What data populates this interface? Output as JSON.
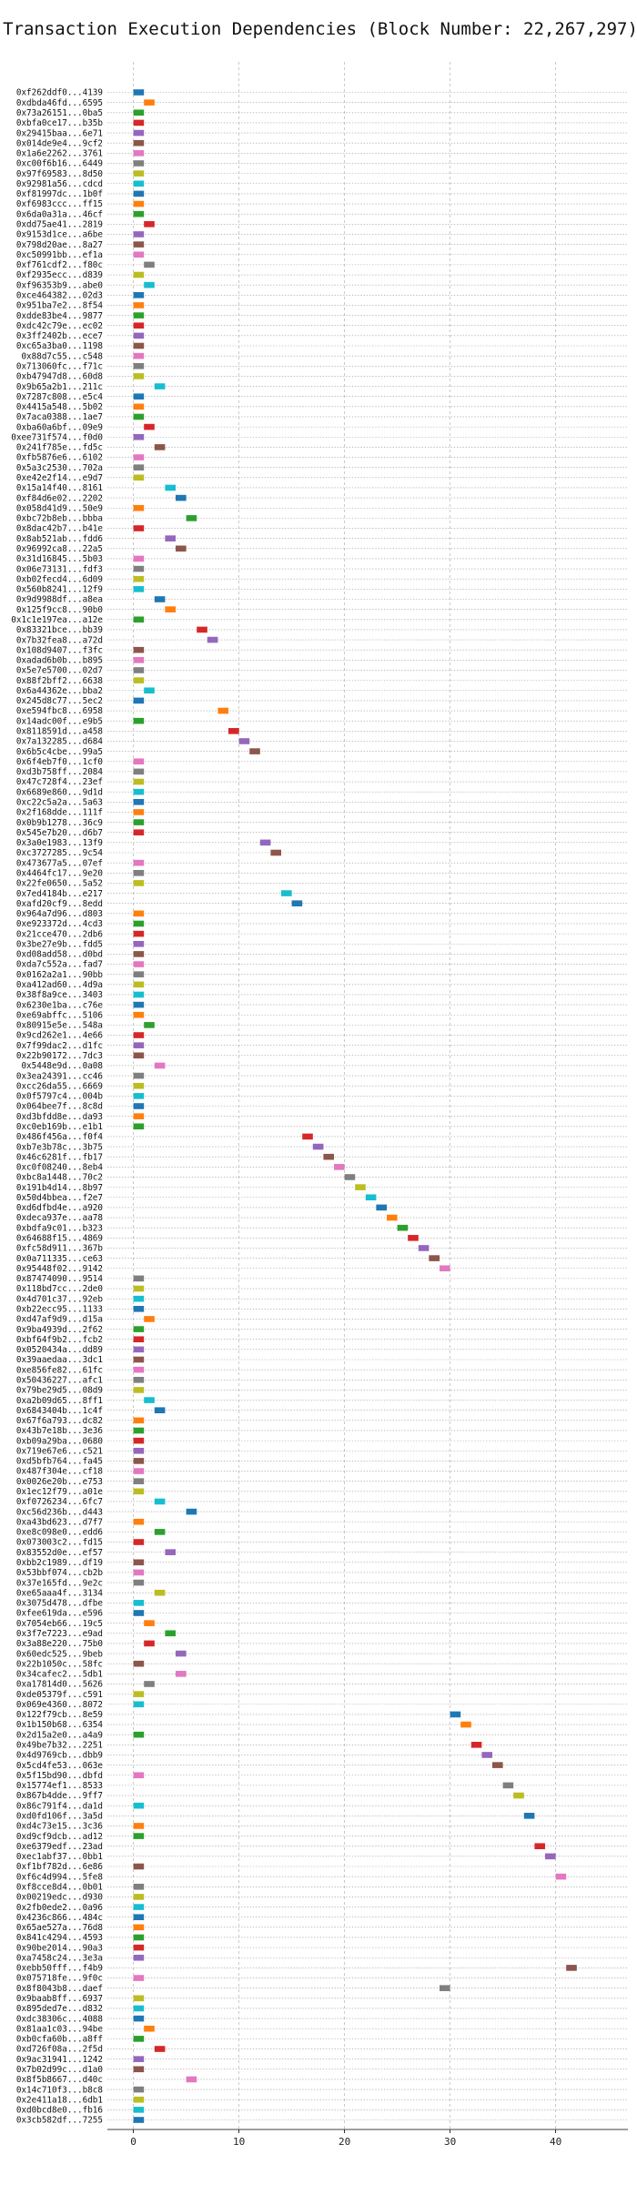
{
  "chart_data": {
    "type": "gantt",
    "title": "Transaction Execution Dependencies (Block Number: 22,267,297)",
    "xlabel": "",
    "ylabel": "",
    "xlim": [
      -2,
      45
    ],
    "xticks": [
      "0",
      "10",
      "20",
      "30",
      "40"
    ],
    "xtick_values": [
      0,
      10,
      20,
      30,
      40
    ],
    "grid": true,
    "palette": [
      "#1f77b4",
      "#ff7f0e",
      "#2ca02c",
      "#d62728",
      "#9467bd",
      "#8c564b",
      "#e377c2",
      "#7f7f7f",
      "#bcbd22",
      "#17becf"
    ],
    "transactions": [
      {
        "label": "0xf262ddf0...4139",
        "start": 0,
        "color": 0
      },
      {
        "label": "0xdbda46fd...6595",
        "start": 1,
        "color": 1
      },
      {
        "label": "0x73a26151...0ba5",
        "start": 0,
        "color": 2
      },
      {
        "label": "0xbfa0ce17...b35b",
        "start": 0,
        "color": 3
      },
      {
        "label": "0x29415baa...6e71",
        "start": 0,
        "color": 4
      },
      {
        "label": "0x014de9e4...9cf2",
        "start": 0,
        "color": 5
      },
      {
        "label": "0x1a6e2262...3761",
        "start": 0,
        "color": 6
      },
      {
        "label": "0xc00f6b16...6449",
        "start": 0,
        "color": 7
      },
      {
        "label": "0x97f69583...8d50",
        "start": 0,
        "color": 8
      },
      {
        "label": "0x92981a56...cdcd",
        "start": 0,
        "color": 9
      },
      {
        "label": "0xf81997dc...1b0f",
        "start": 0,
        "color": 0
      },
      {
        "label": "0xf6983ccc...ff15",
        "start": 0,
        "color": 1
      },
      {
        "label": "0x6da0a31a...46cf",
        "start": 0,
        "color": 2
      },
      {
        "label": "0xdd75ae41...2819",
        "start": 1,
        "color": 3
      },
      {
        "label": "0x9153d1ce...a6be",
        "start": 0,
        "color": 4
      },
      {
        "label": "0x798d20ae...8a27",
        "start": 0,
        "color": 5
      },
      {
        "label": "0xc50991bb...ef1a",
        "start": 0,
        "color": 6
      },
      {
        "label": "0xf761cdf2...f80c",
        "start": 1,
        "color": 7
      },
      {
        "label": "0xf2935ecc...d839",
        "start": 0,
        "color": 8
      },
      {
        "label": "0xf96353b9...abe0",
        "start": 1,
        "color": 9
      },
      {
        "label": "0xce464382...02d3",
        "start": 0,
        "color": 0
      },
      {
        "label": "0x951ba7e2...8f54",
        "start": 0,
        "color": 1
      },
      {
        "label": "0xdde83be4...9877",
        "start": 0,
        "color": 2
      },
      {
        "label": "0xdc42c79e...ec02",
        "start": 0,
        "color": 3
      },
      {
        "label": "0x3ff2402b...ece7",
        "start": 0,
        "color": 4
      },
      {
        "label": "0xc65a3ba0...1198",
        "start": 0,
        "color": 5
      },
      {
        "label": "0x88d7c55...c548",
        "start": 0,
        "color": 6
      },
      {
        "label": "0x713060fc...f71c",
        "start": 0,
        "color": 7
      },
      {
        "label": "0xb47947d8...60d8",
        "start": 0,
        "color": 8
      },
      {
        "label": "0x9b65a2b1...211c",
        "start": 2,
        "color": 9
      },
      {
        "label": "0x7287c808...e5c4",
        "start": 0,
        "color": 0
      },
      {
        "label": "0x4415a548...5b02",
        "start": 0,
        "color": 1
      },
      {
        "label": "0x7aca0388...1ae7",
        "start": 0,
        "color": 2
      },
      {
        "label": "0xba60a6bf...09e9",
        "start": 1,
        "color": 3
      },
      {
        "label": "0xee731f574...f0d0",
        "start": 0,
        "color": 4
      },
      {
        "label": "0x241f785e...fd5c",
        "start": 2,
        "color": 5
      },
      {
        "label": "0xfb5876e6...6102",
        "start": 0,
        "color": 6
      },
      {
        "label": "0x5a3c2530...702a",
        "start": 0,
        "color": 7
      },
      {
        "label": "0xe42e2f14...e9d7",
        "start": 0,
        "color": 8
      },
      {
        "label": "0x15a14f40...8161",
        "start": 3,
        "color": 9
      },
      {
        "label": "0xf84d6e02...2202",
        "start": 4,
        "color": 0
      },
      {
        "label": "0x058d41d9...50e9",
        "start": 0,
        "color": 1
      },
      {
        "label": "0xbc72b8eb...bbba",
        "start": 5,
        "color": 2
      },
      {
        "label": "0x8dac42b7...b41e",
        "start": 0,
        "color": 3
      },
      {
        "label": "0x8ab521ab...fdd6",
        "start": 3,
        "color": 4
      },
      {
        "label": "0x96992ca8...22a5",
        "start": 4,
        "color": 5
      },
      {
        "label": "0x31d16845...5b03",
        "start": 0,
        "color": 6
      },
      {
        "label": "0x06e73131...fdf3",
        "start": 0,
        "color": 7
      },
      {
        "label": "0xb02fecd4...6d09",
        "start": 0,
        "color": 8
      },
      {
        "label": "0x560b8241...12f9",
        "start": 0,
        "color": 9
      },
      {
        "label": "0x9d9988df...a8ea",
        "start": 2,
        "color": 0
      },
      {
        "label": "0x125f9cc8...90b0",
        "start": 3,
        "color": 1
      },
      {
        "label": "0x1c1e197ea...a12e",
        "start": 0,
        "color": 2
      },
      {
        "label": "0x83321bce...bb39",
        "start": 6,
        "color": 3
      },
      {
        "label": "0x7b32fea8...a72d",
        "start": 7,
        "color": 4
      },
      {
        "label": "0x108d9407...f3fc",
        "start": 0,
        "color": 5
      },
      {
        "label": "0xadad6b0b...b895",
        "start": 0,
        "color": 6
      },
      {
        "label": "0x5e7e5700...02d7",
        "start": 0,
        "color": 7
      },
      {
        "label": "0x88f2bff2...6638",
        "start": 0,
        "color": 8
      },
      {
        "label": "0x6a44362e...bba2",
        "start": 1,
        "color": 9
      },
      {
        "label": "0x245d8c77...5ec2",
        "start": 0,
        "color": 0
      },
      {
        "label": "0xe594fbc8...6958",
        "start": 8,
        "color": 1
      },
      {
        "label": "0x14adc00f...e9b5",
        "start": 0,
        "color": 2
      },
      {
        "label": "0x8118591d...a458",
        "start": 9,
        "color": 3
      },
      {
        "label": "0x7a132285...d684",
        "start": 10,
        "color": 4
      },
      {
        "label": "0x6b5c4cbe...99a5",
        "start": 11,
        "color": 5
      },
      {
        "label": "0x6f4eb7f0...1cf0",
        "start": 0,
        "color": 6
      },
      {
        "label": "0xd3b758ff...2084",
        "start": 0,
        "color": 7
      },
      {
        "label": "0x47c728f4...23ef",
        "start": 0,
        "color": 8
      },
      {
        "label": "0x6689e860...9d1d",
        "start": 0,
        "color": 9
      },
      {
        "label": "0xc22c5a2a...5a63",
        "start": 0,
        "color": 0
      },
      {
        "label": "0x2f168dde...111f",
        "start": 0,
        "color": 1
      },
      {
        "label": "0x0b9b1278...36c9",
        "start": 0,
        "color": 2
      },
      {
        "label": "0x545e7b20...d6b7",
        "start": 0,
        "color": 3
      },
      {
        "label": "0x3a0e1983...13f9",
        "start": 12,
        "color": 4
      },
      {
        "label": "0xc3727285...9c54",
        "start": 13,
        "color": 5
      },
      {
        "label": "0x473677a5...07ef",
        "start": 0,
        "color": 6
      },
      {
        "label": "0x4464fc17...9e20",
        "start": 0,
        "color": 7
      },
      {
        "label": "0x22fe0650...5a52",
        "start": 0,
        "color": 8
      },
      {
        "label": "0x7ed4184b...e217",
        "start": 14,
        "color": 9
      },
      {
        "label": "0xafd20cf9...8edd",
        "start": 15,
        "color": 0
      },
      {
        "label": "0x964a7d96...d803",
        "start": 0,
        "color": 1
      },
      {
        "label": "0xe923372d...4cd3",
        "start": 0,
        "color": 2
      },
      {
        "label": "0x21cce470...2db6",
        "start": 0,
        "color": 3
      },
      {
        "label": "0x3be27e9b...fdd5",
        "start": 0,
        "color": 4
      },
      {
        "label": "0xd08add58...d0bd",
        "start": 0,
        "color": 5
      },
      {
        "label": "0xda7c552a...fad7",
        "start": 0,
        "color": 6
      },
      {
        "label": "0x0162a2a1...90bb",
        "start": 0,
        "color": 7
      },
      {
        "label": "0xa412ad60...4d9a",
        "start": 0,
        "color": 8
      },
      {
        "label": "0x38f8a9ce...3403",
        "start": 0,
        "color": 9
      },
      {
        "label": "0x6230e1ba...c76e",
        "start": 0,
        "color": 0
      },
      {
        "label": "0xe69abffc...5106",
        "start": 0,
        "color": 1
      },
      {
        "label": "0x80915e5e...548a",
        "start": 1,
        "color": 2
      },
      {
        "label": "0x9cd262e1...4e66",
        "start": 0,
        "color": 3
      },
      {
        "label": "0x7f99dac2...d1fc",
        "start": 0,
        "color": 4
      },
      {
        "label": "0x22b90172...7dc3",
        "start": 0,
        "color": 5
      },
      {
        "label": "0x5448e9d...0a08",
        "start": 2,
        "color": 6
      },
      {
        "label": "0x3ea24391...cc46",
        "start": 0,
        "color": 7
      },
      {
        "label": "0xcc26da55...6669",
        "start": 0,
        "color": 8
      },
      {
        "label": "0x0f5797c4...004b",
        "start": 0,
        "color": 9
      },
      {
        "label": "0x064bee7f...8c8d",
        "start": 0,
        "color": 0
      },
      {
        "label": "0xd3bfdd8e...da93",
        "start": 0,
        "color": 1
      },
      {
        "label": "0xc0eb169b...e1b1",
        "start": 0,
        "color": 2
      },
      {
        "label": "0x486f456a...f0f4",
        "start": 16,
        "color": 3
      },
      {
        "label": "0xb7e3b78c...3b75",
        "start": 17,
        "color": 4
      },
      {
        "label": "0x46c6281f...fb17",
        "start": 18,
        "color": 5
      },
      {
        "label": "0xc0f08240...8eb4",
        "start": 19,
        "color": 6
      },
      {
        "label": "0xbc8a1448...70c2",
        "start": 20,
        "color": 7
      },
      {
        "label": "0x191b4d14...8b97",
        "start": 21,
        "color": 8
      },
      {
        "label": "0x50d4bbea...f2e7",
        "start": 22,
        "color": 9
      },
      {
        "label": "0xd6dfbd4e...a920",
        "start": 23,
        "color": 0
      },
      {
        "label": "0xdeca937e...aa78",
        "start": 24,
        "color": 1
      },
      {
        "label": "0xbdfa9c01...b323",
        "start": 25,
        "color": 2
      },
      {
        "label": "0x64688f15...4869",
        "start": 26,
        "color": 3
      },
      {
        "label": "0xfc58d911...367b",
        "start": 27,
        "color": 4
      },
      {
        "label": "0x0a711335...ce63",
        "start": 28,
        "color": 5
      },
      {
        "label": "0x95448f02...9142",
        "start": 29,
        "color": 6
      },
      {
        "label": "0x87474090...9514",
        "start": 0,
        "color": 7
      },
      {
        "label": "0x118bd7cc...2de0",
        "start": 0,
        "color": 8
      },
      {
        "label": "0x4d701c37...92eb",
        "start": 0,
        "color": 9
      },
      {
        "label": "0xb22ecc95...1133",
        "start": 0,
        "color": 0
      },
      {
        "label": "0xd47af9d9...d15a",
        "start": 1,
        "color": 1
      },
      {
        "label": "0x9ba4939d...2f62",
        "start": 0,
        "color": 2
      },
      {
        "label": "0xbf64f9b2...fcb2",
        "start": 0,
        "color": 3
      },
      {
        "label": "0x0520434a...dd89",
        "start": 0,
        "color": 4
      },
      {
        "label": "0x39aaedaa...3dc1",
        "start": 0,
        "color": 5
      },
      {
        "label": "0xe856fe82...61fc",
        "start": 0,
        "color": 6
      },
      {
        "label": "0x50436227...afc1",
        "start": 0,
        "color": 7
      },
      {
        "label": "0x79be29d5...08d9",
        "start": 0,
        "color": 8
      },
      {
        "label": "0xa2b09d65...8ff1",
        "start": 1,
        "color": 9
      },
      {
        "label": "0x6843404b...1c4f",
        "start": 2,
        "color": 0
      },
      {
        "label": "0x67f6a793...dc82",
        "start": 0,
        "color": 1
      },
      {
        "label": "0x43b7e18b...3e36",
        "start": 0,
        "color": 2
      },
      {
        "label": "0xb09a29ba...0680",
        "start": 0,
        "color": 3
      },
      {
        "label": "0x719e67e6...c521",
        "start": 0,
        "color": 4
      },
      {
        "label": "0xd5bfb764...fa45",
        "start": 0,
        "color": 5
      },
      {
        "label": "0x487f304e...cf18",
        "start": 0,
        "color": 6
      },
      {
        "label": "0x0026e20b...e753",
        "start": 0,
        "color": 7
      },
      {
        "label": "0x1ec12f79...a01e",
        "start": 0,
        "color": 8
      },
      {
        "label": "0xf0726234...6fc7",
        "start": 2,
        "color": 9
      },
      {
        "label": "0xc56d236b...d443",
        "start": 5,
        "color": 0
      },
      {
        "label": "0xa43bd623...d7f7",
        "start": 0,
        "color": 1
      },
      {
        "label": "0xe8c098e0...edd6",
        "start": 2,
        "color": 2
      },
      {
        "label": "0x073003c2...fd15",
        "start": 0,
        "color": 3
      },
      {
        "label": "0x83552d0e...ef57",
        "start": 3,
        "color": 4
      },
      {
        "label": "0xbb2c1989...df19",
        "start": 0,
        "color": 5
      },
      {
        "label": "0x53bbf074...cb2b",
        "start": 0,
        "color": 6
      },
      {
        "label": "0x37e165fd...9e2c",
        "start": 0,
        "color": 7
      },
      {
        "label": "0xe65aaa4f...3134",
        "start": 2,
        "color": 8
      },
      {
        "label": "0x3075d478...dfbe",
        "start": 0,
        "color": 9
      },
      {
        "label": "0xfee619da...e596",
        "start": 0,
        "color": 0
      },
      {
        "label": "0x7054eb66...19c5",
        "start": 1,
        "color": 1
      },
      {
        "label": "0x3f7e7223...e9ad",
        "start": 3,
        "color": 2
      },
      {
        "label": "0x3a88e220...75b0",
        "start": 1,
        "color": 3
      },
      {
        "label": "0x60edc525...9beb",
        "start": 4,
        "color": 4
      },
      {
        "label": "0x22b1050c...58fc",
        "start": 0,
        "color": 5
      },
      {
        "label": "0x34cafec2...5db1",
        "start": 4,
        "color": 6
      },
      {
        "label": "0xa17814d0...5626",
        "start": 1,
        "color": 7
      },
      {
        "label": "0xde05379f...c591",
        "start": 0,
        "color": 8
      },
      {
        "label": "0x069e4360...8072",
        "start": 0,
        "color": 9
      },
      {
        "label": "0x122f79cb...8e59",
        "start": 30,
        "color": 0
      },
      {
        "label": "0x1b150b68...6354",
        "start": 31,
        "color": 1
      },
      {
        "label": "0x2d15a2e0...a4a9",
        "start": 0,
        "color": 2
      },
      {
        "label": "0x49be7b32...2251",
        "start": 32,
        "color": 3
      },
      {
        "label": "0x4d9769cb...dbb9",
        "start": 33,
        "color": 4
      },
      {
        "label": "0x5cd4fe53...063e",
        "start": 34,
        "color": 5
      },
      {
        "label": "0x5f15bd90...dbfd",
        "start": 0,
        "color": 6
      },
      {
        "label": "0x15774ef1...8533",
        "start": 35,
        "color": 7
      },
      {
        "label": "0x867b4dde...9ff7",
        "start": 36,
        "color": 8
      },
      {
        "label": "0x86c791f4...da1d",
        "start": 0,
        "color": 9
      },
      {
        "label": "0xd0fd106f...3a5d",
        "start": 37,
        "color": 0
      },
      {
        "label": "0xd4c73e15...3c36",
        "start": 0,
        "color": 1
      },
      {
        "label": "0xd9cf9dcb...ad12",
        "start": 0,
        "color": 2
      },
      {
        "label": "0xe6379edf...23ad",
        "start": 38,
        "color": 3
      },
      {
        "label": "0xec1abf37...0bb1",
        "start": 39,
        "color": 4
      },
      {
        "label": "0xf1bf782d...6e86",
        "start": 0,
        "color": 5
      },
      {
        "label": "0xf6c4d994...5fe8",
        "start": 40,
        "color": 6
      },
      {
        "label": "0xf8cce8d4...0b01",
        "start": 0,
        "color": 7
      },
      {
        "label": "0x00219edc...d930",
        "start": 0,
        "color": 8
      },
      {
        "label": "0x2fb0ede2...0a96",
        "start": 0,
        "color": 9
      },
      {
        "label": "0x4236c866...484c",
        "start": 0,
        "color": 0
      },
      {
        "label": "0x65ae527a...76d8",
        "start": 0,
        "color": 1
      },
      {
        "label": "0x841c4294...4593",
        "start": 0,
        "color": 2
      },
      {
        "label": "0x90be2014...90a3",
        "start": 0,
        "color": 3
      },
      {
        "label": "0xa7458c24...3e3a",
        "start": 0,
        "color": 4
      },
      {
        "label": "0xebb50fff...f4b9",
        "start": 41,
        "color": 5
      },
      {
        "label": "0x075718fe...9f0c",
        "start": 0,
        "color": 6
      },
      {
        "label": "0x8f8043b8...daef",
        "start": 29,
        "color": 7
      },
      {
        "label": "0x9baab8ff...6937",
        "start": 0,
        "color": 8
      },
      {
        "label": "0x895ded7e...d832",
        "start": 0,
        "color": 9
      },
      {
        "label": "0xdc38306c...4088",
        "start": 0,
        "color": 0
      },
      {
        "label": "0x81aa1c03...94be",
        "start": 1,
        "color": 1
      },
      {
        "label": "0xb0cfa60b...a8ff",
        "start": 0,
        "color": 2
      },
      {
        "label": "0xd726f08a...2f5d",
        "start": 2,
        "color": 3
      },
      {
        "label": "0x9ac31941...1242",
        "start": 0,
        "color": 4
      },
      {
        "label": "0x7b02d99c...d1a0",
        "start": 0,
        "color": 5
      },
      {
        "label": "0x8f5b8667...d40c",
        "start": 5,
        "color": 6
      },
      {
        "label": "0x14c710f3...b8c8",
        "start": 0,
        "color": 7
      },
      {
        "label": "0x2e411a18...6db1",
        "start": 0,
        "color": 8
      },
      {
        "label": "0xd0bcd8e0...fb16",
        "start": 0,
        "color": 9
      },
      {
        "label": "0x3cb582df...7255",
        "start": 0,
        "color": 0
      }
    ]
  }
}
